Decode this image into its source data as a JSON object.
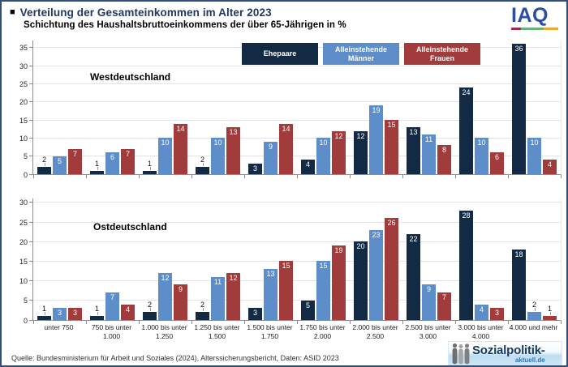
{
  "page": {
    "title": "Verteilung der Gesamteinkommen im Alter 2023",
    "subtitle": "Schichtung des Haushaltsbruttoeinkommens der über 65-Jährigen in %",
    "source": "Quelle: Bundesministerium für Arbeit und Soziales (2024), Alterssicherungsbericht, Daten: ASID 2023"
  },
  "branding": {
    "iaq_text": "IAQ",
    "iaq_color": "#2B4EA2",
    "iaq_underline_colors": [
      "#9E2C50",
      "#69B279",
      "#F0A632"
    ],
    "sozialpolitik_text": "Sozialpolitik-",
    "sozialpolitik_sub": "aktuell.de"
  },
  "colors": {
    "ehepaare": "#132A44",
    "alleinstehende_maenner": "#5D8EC9",
    "alleinstehende_frauen": "#A23B3B",
    "title_blue": "#1F3864",
    "gridline": "#E3E3E3"
  },
  "legend": {
    "position": "top-center",
    "items": [
      {
        "label": "Ehepaare",
        "color": "#132A44"
      },
      {
        "label": "Alleinstehende\nMänner",
        "color": "#5D8EC9"
      },
      {
        "label": "Alleinstehende\nFrauen",
        "color": "#A23B3B"
      }
    ]
  },
  "chart_data": [
    {
      "type": "bar",
      "title": "Westdeutschland",
      "unit": "%",
      "grid": true,
      "ylim": [
        0,
        37
      ],
      "yticks": [
        0,
        5,
        10,
        15,
        20,
        25,
        30,
        35
      ],
      "categories": [
        "unter 750",
        "750 bis unter\n1.000",
        "1.000 bis unter\n1.250",
        "1.250 bis unter\n1.500",
        "1.500 bis unter\n1.750",
        "1.750 bis unter\n2.000",
        "2.000 bis unter\n2.500",
        "2.500 bis unter\n3.000",
        "3.000 bis unter\n4.000",
        "4.000 und mehr"
      ],
      "series": [
        {
          "name": "Ehepaare",
          "color": "#132A44",
          "values": [
            2,
            1,
            1,
            2,
            3,
            4,
            12,
            13,
            24,
            36
          ]
        },
        {
          "name": "Alleinstehende Männer",
          "color": "#5D8EC9",
          "values": [
            5,
            6,
            10,
            10,
            9,
            10,
            19,
            11,
            10,
            10
          ]
        },
        {
          "name": "Alleinstehende Frauen",
          "color": "#A23B3B",
          "values": [
            7,
            7,
            14,
            13,
            14,
            12,
            15,
            8,
            6,
            4
          ]
        }
      ]
    },
    {
      "type": "bar",
      "title": "Ostdeutschland",
      "unit": "%",
      "grid": true,
      "ylim": [
        0,
        31
      ],
      "yticks": [
        0,
        5,
        10,
        15,
        20,
        25,
        30
      ],
      "categories": [
        "unter 750",
        "750 bis unter\n1.000",
        "1.000 bis unter\n1.250",
        "1.250 bis unter\n1.500",
        "1.500 bis unter\n1.750",
        "1.750 bis unter\n2.000",
        "2.000 bis unter\n2.500",
        "2.500 bis unter\n3.000",
        "3.000 bis unter\n4.000",
        "4.000 und mehr"
      ],
      "series": [
        {
          "name": "Ehepaare",
          "color": "#132A44",
          "values": [
            1,
            1,
            2,
            2,
            3,
            5,
            20,
            22,
            28,
            18
          ]
        },
        {
          "name": "Alleinstehende Männer",
          "color": "#5D8EC9",
          "values": [
            3,
            7,
            12,
            11,
            13,
            15,
            23,
            9,
            4,
            2
          ]
        },
        {
          "name": "Alleinstehende Frauen",
          "color": "#A23B3B",
          "values": [
            3,
            4,
            9,
            12,
            15,
            19,
            26,
            7,
            3,
            1
          ]
        }
      ]
    }
  ]
}
